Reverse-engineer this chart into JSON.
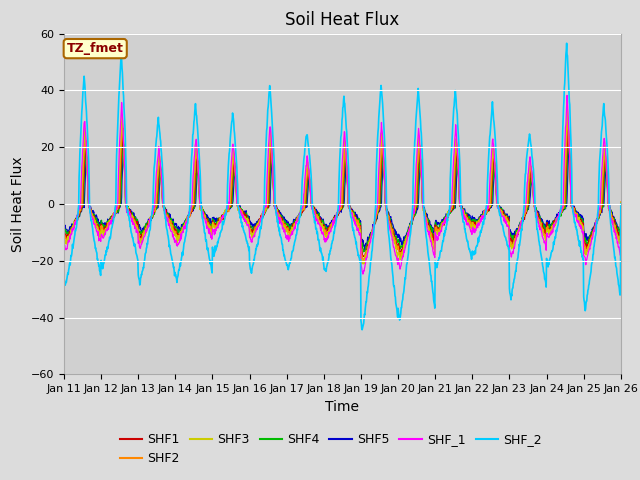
{
  "title": "Soil Heat Flux",
  "xlabel": "Time",
  "ylabel": "Soil Heat Flux",
  "ylim": [
    -60,
    60
  ],
  "xlim": [
    0,
    360
  ],
  "yticks": [
    -60,
    -40,
    -20,
    0,
    20,
    40,
    60
  ],
  "xtick_labels": [
    "Jan 11",
    "Jan 12",
    "Jan 13",
    "Jan 14",
    "Jan 15",
    "Jan 16",
    "Jan 17",
    "Jan 18",
    "Jan 19",
    "Jan 20",
    "Jan 21",
    "Jan 22",
    "Jan 23",
    "Jan 24",
    "Jan 25",
    "Jan 26"
  ],
  "xtick_positions": [
    0,
    24,
    48,
    72,
    96,
    120,
    144,
    168,
    192,
    216,
    240,
    264,
    288,
    312,
    336,
    360
  ],
  "series_colors": {
    "SHF1": "#cc0000",
    "SHF2": "#ff8800",
    "SHF3": "#cccc00",
    "SHF4": "#00bb00",
    "SHF5": "#0000cc",
    "SHF_1": "#ff00ff",
    "SHF_2": "#00ccff"
  },
  "legend_label": "TZ_fmet",
  "bg_color": "#dcdcdc",
  "plot_bg": "#d0d0d0",
  "title_fontsize": 12,
  "axis_label_fontsize": 10,
  "tick_fontsize": 8,
  "legend_ncol": 6,
  "legend_ncol2": 1
}
